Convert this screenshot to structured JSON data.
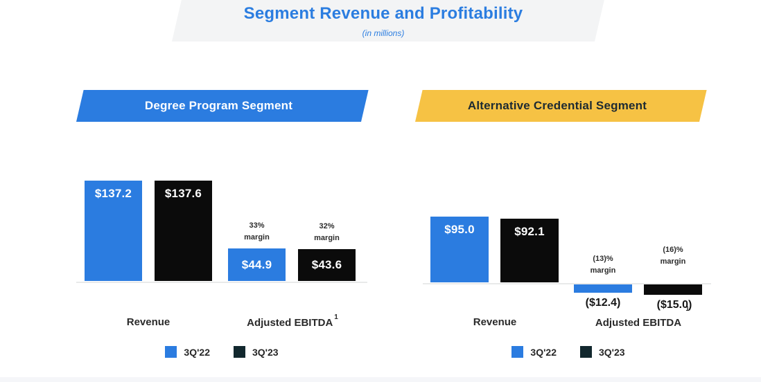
{
  "title": {
    "heading": "Segment Revenue and Profitability",
    "subtitle": "(in millions)"
  },
  "colors": {
    "blue": "#2b7ce0",
    "black_bar": "#0b0b0b",
    "yellow": "#f6c244",
    "legend_dark": "#12282e",
    "title_blue": "#2b7de0",
    "banner_gray": "#f3f4f5"
  },
  "legend": [
    {
      "label": "3Q'22",
      "color": "blue"
    },
    {
      "label": "3Q'23",
      "color": "dark"
    }
  ],
  "chart_data": [
    {
      "type": "bar",
      "segment": "Degree Program Segment",
      "unit": "USD millions",
      "groups": [
        {
          "label": "Revenue",
          "footnote": ""
        },
        {
          "label": "Adjusted EBITDA",
          "footnote": "1"
        }
      ],
      "series": [
        "3Q'22",
        "3Q'23"
      ],
      "bars": [
        {
          "series": "3Q'22",
          "group": "Revenue",
          "value": 137.2,
          "label": "$137.2",
          "color": "blue"
        },
        {
          "series": "3Q'23",
          "group": "Revenue",
          "value": 137.6,
          "label": "$137.6",
          "color": "black"
        },
        {
          "series": "3Q'22",
          "group": "Adjusted EBITDA",
          "value": 44.9,
          "label": "$44.9",
          "color": "blue",
          "margin_lines": [
            "33%",
            "margin"
          ]
        },
        {
          "series": "3Q'23",
          "group": "Adjusted EBITDA",
          "value": 43.6,
          "label": "$43.6",
          "color": "black",
          "margin_lines": [
            "32%",
            "margin"
          ]
        }
      ]
    },
    {
      "type": "bar",
      "segment": "Alternative Credential Segment",
      "unit": "USD millions",
      "groups": [
        {
          "label": "Revenue",
          "footnote": ""
        },
        {
          "label": "Adjusted EBITDA",
          "footnote": ""
        }
      ],
      "series": [
        "3Q'22",
        "3Q'23"
      ],
      "bars": [
        {
          "series": "3Q'22",
          "group": "Revenue",
          "value": 95.0,
          "label": "$95.0",
          "color": "blue"
        },
        {
          "series": "3Q'23",
          "group": "Revenue",
          "value": 92.1,
          "label": "$92.1",
          "color": "black"
        },
        {
          "series": "3Q'22",
          "group": "Adjusted EBITDA",
          "value": -12.4,
          "label": "($12.4)",
          "color": "blue",
          "margin_lines": [
            "(13)%",
            "margin"
          ]
        },
        {
          "series": "3Q'23",
          "group": "Adjusted EBITDA",
          "value": -15.0,
          "label": "($15.0)",
          "color": "black",
          "footnote": "1",
          "margin_lines": [
            "(16)%",
            "margin"
          ]
        }
      ]
    }
  ]
}
